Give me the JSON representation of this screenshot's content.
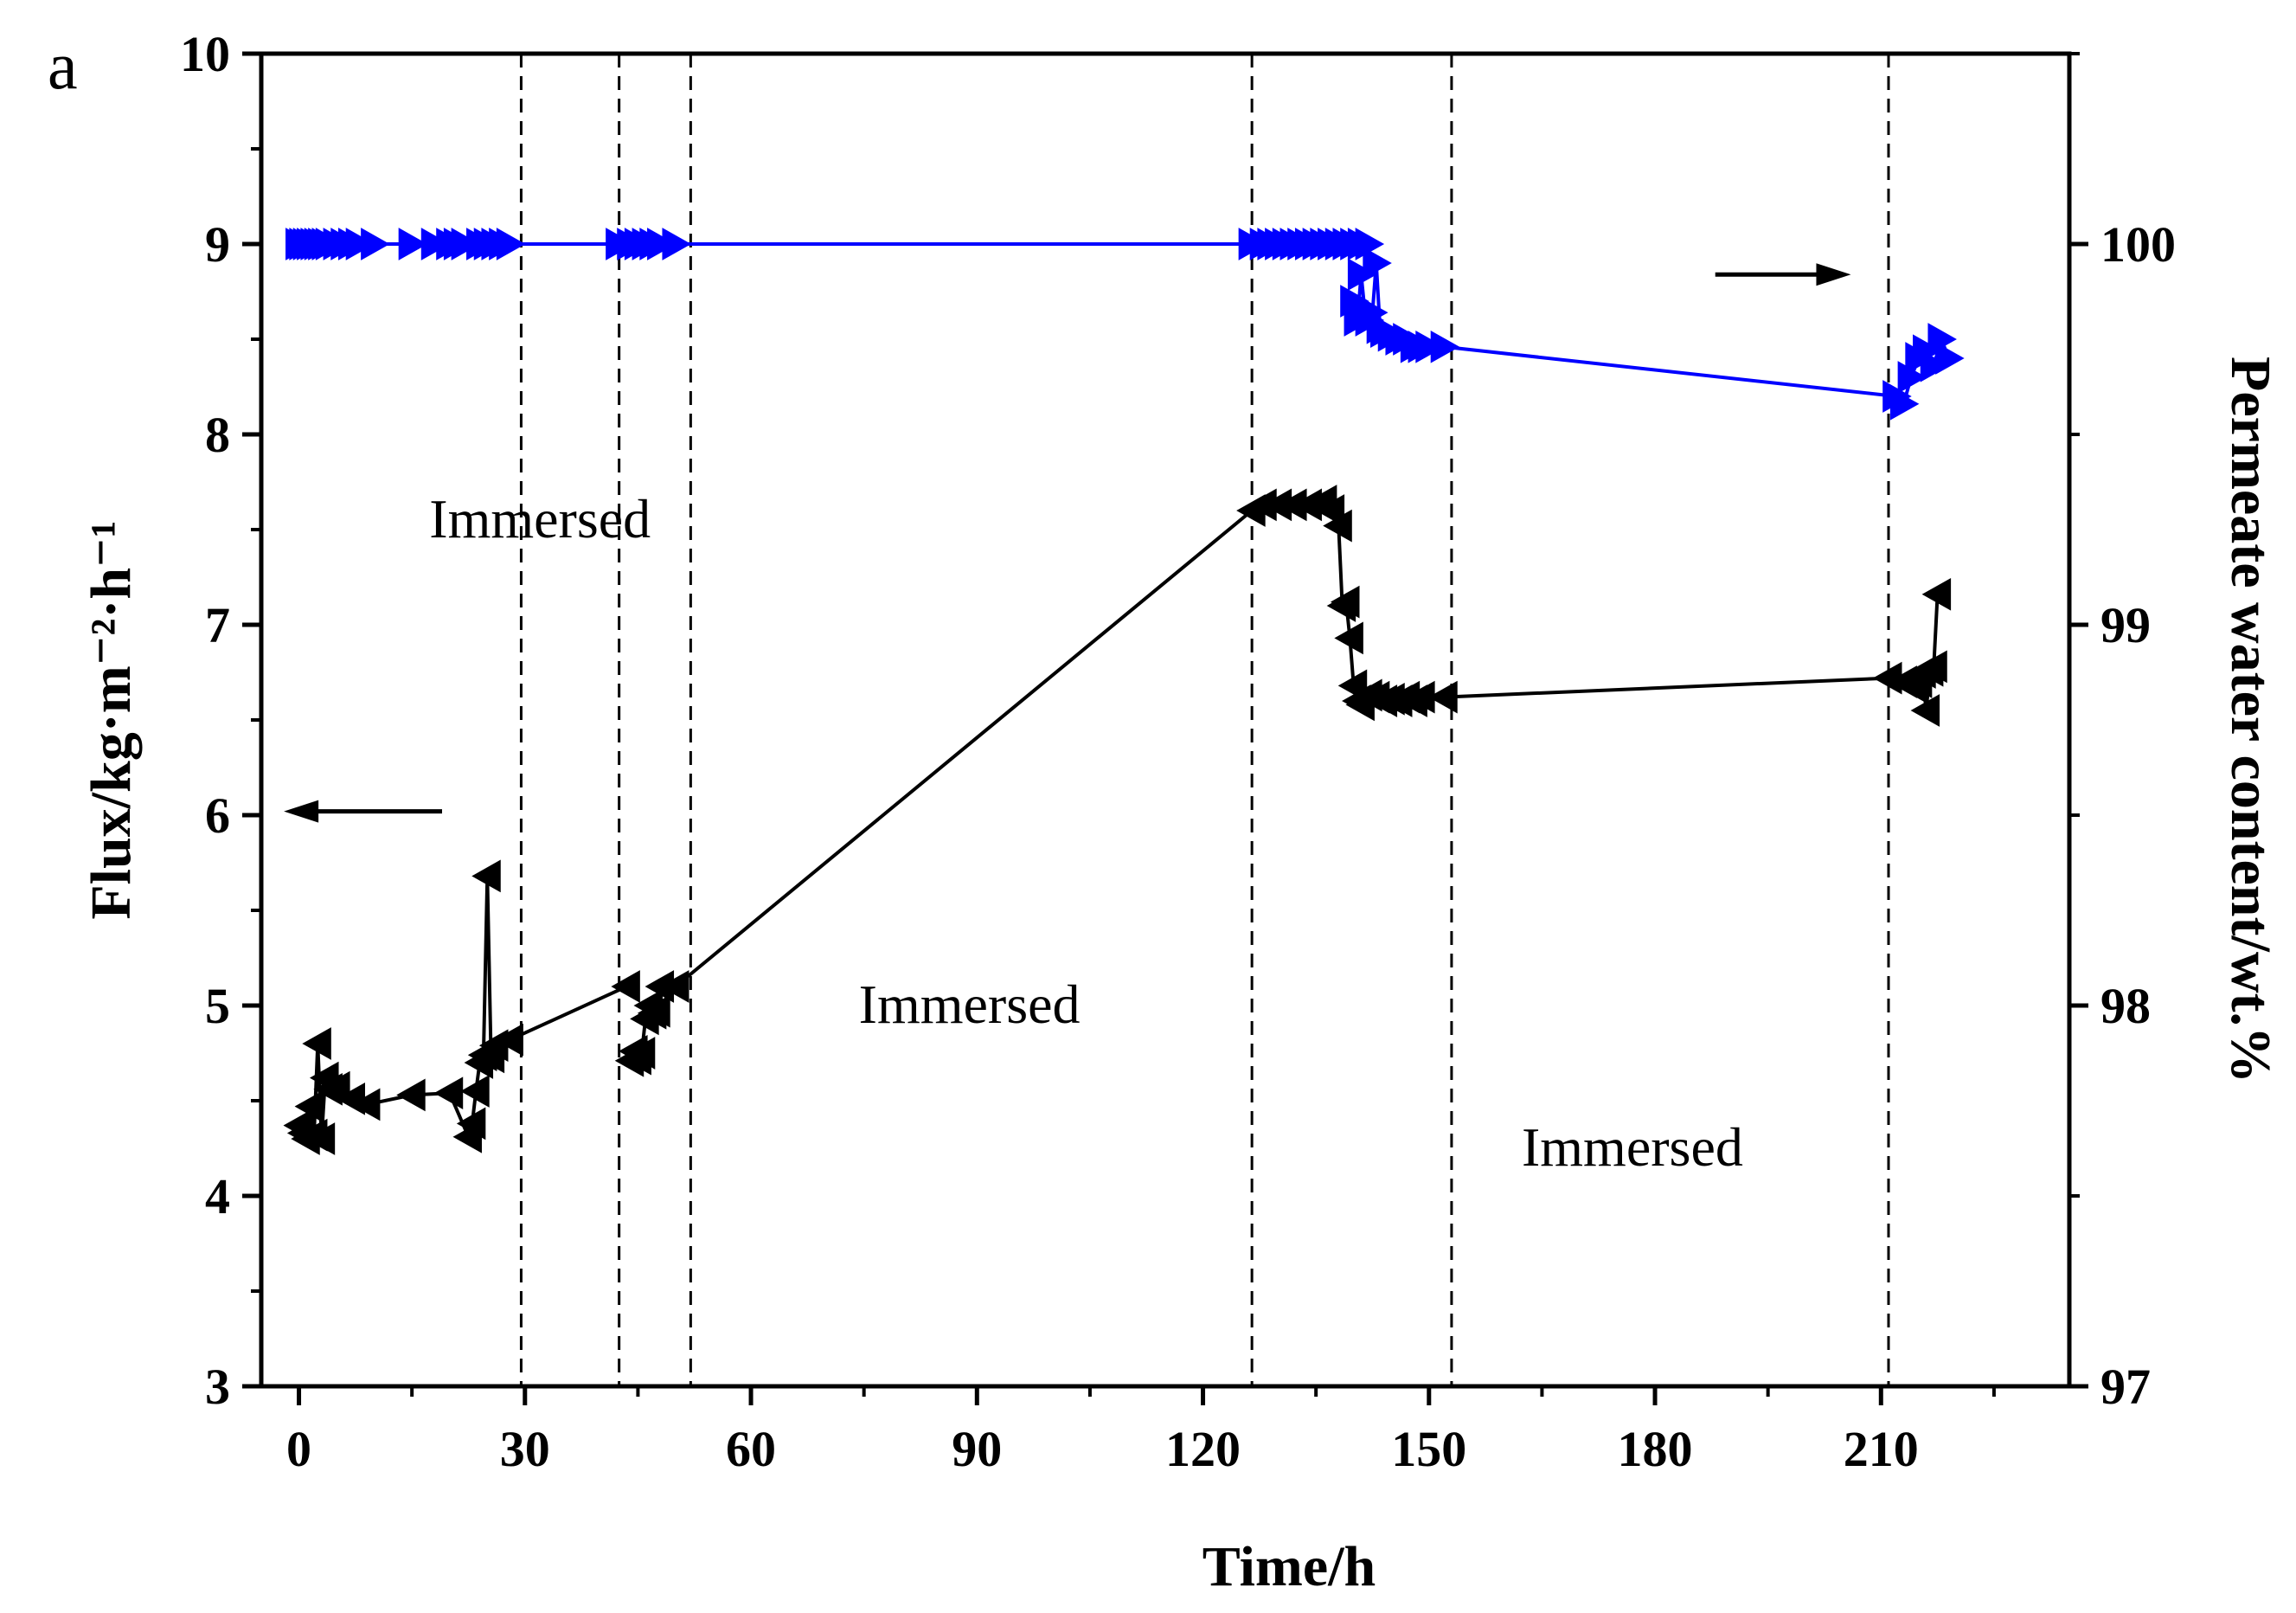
{
  "chart_data": {
    "type": "line",
    "panel_label": "a",
    "xlabel": "Time/h",
    "ylabel_left": "Flux/kg·m⁻²·h⁻¹",
    "ylabel_right": "Permeate water content/wt.%",
    "xlim": [
      -5,
      235
    ],
    "ylim_left": [
      3,
      10
    ],
    "ylim_right": [
      97,
      100.5
    ],
    "xticks": [
      0,
      30,
      60,
      90,
      120,
      150,
      180,
      210
    ],
    "yticks_left": [
      3,
      4,
      5,
      6,
      7,
      8,
      9,
      10
    ],
    "yticks_right": [
      97,
      98,
      99,
      100
    ],
    "vertical_dashed_lines": [
      29.5,
      42.5,
      52,
      126.5,
      153,
      211
    ],
    "annotations": [
      {
        "text": "Immersed",
        "x": 32,
        "y": 7.55
      },
      {
        "text": "Immersed",
        "x": 89,
        "y": 5.0
      },
      {
        "text": "Immersed",
        "x": 177,
        "y": 4.25
      }
    ],
    "arrows": [
      {
        "direction": "left",
        "axis": "left",
        "x_from": 19,
        "x_to": -2,
        "y": 6.02
      },
      {
        "direction": "right",
        "axis": "right",
        "x_from": 188,
        "x_to": 206,
        "y": 99.92
      }
    ],
    "series": [
      {
        "name": "Flux",
        "axis": "left",
        "color": "#000000",
        "marker": "triangle-left",
        "segments": [
          {
            "x": [
              0,
              0.5,
              1,
              1.5,
              2,
              2.5,
              3,
              3.5,
              4,
              5,
              7,
              9,
              15,
              20,
              22.5,
              23,
              23.5,
              24,
              24.5,
              25,
              25.5,
              26
            ],
            "y": [
              4.37,
              4.33,
              4.3,
              4.47,
              4.32,
              4.8,
              4.3,
              4.62,
              4.56,
              4.57,
              4.51,
              4.48,
              4.53,
              4.54,
              4.31,
              4.38,
              4.55,
              4.7,
              4.74,
              5.68,
              4.73,
              4.79
            ]
          },
          {
            "x": [
              28,
              43.5
            ],
            "y": [
              4.82,
              5.1
            ]
          },
          {
            "x": [
              44,
              44.5,
              45,
              45.5,
              46,
              46.5,
              47,
              47.5,
              48
            ],
            "y": [
              4.71,
              4.76,
              4.72,
              4.75,
              4.93,
              5.0,
              4.96,
              4.97,
              5.1
            ]
          },
          {
            "x": [
              50,
              126.5
            ],
            "y": [
              5.1,
              7.6
            ]
          },
          {
            "x": [
              128,
              130,
              132,
              134,
              136,
              137,
              138,
              138.5,
              139,
              139.5,
              140,
              140.5,
              141,
              142,
              143,
              144,
              145,
              146,
              147,
              148,
              149
            ],
            "y": [
              7.63,
              7.63,
              7.63,
              7.63,
              7.65,
              7.6,
              7.52,
              7.1,
              7.12,
              6.93,
              6.68,
              6.6,
              6.58,
              6.63,
              6.62,
              6.6,
              6.61,
              6.6,
              6.62,
              6.6,
              6.62
            ]
          },
          {
            "x": [
              152,
              211
            ],
            "y": [
              6.62,
              6.72
            ]
          },
          {
            "x": [
              213,
              214,
              215,
              215.5,
              216,
              216.5,
              217,
              217.5
            ],
            "y": [
              6.7,
              6.68,
              6.7,
              6.75,
              6.55,
              6.76,
              6.78,
              7.16
            ]
          }
        ]
      },
      {
        "name": "Permeate water content",
        "axis": "right",
        "color": "#0000FF",
        "marker": "triangle-right",
        "segments": [
          {
            "x": [
              0,
              0.5,
              1,
              1.5,
              2,
              2.5,
              3,
              3.5,
              4,
              5,
              6,
              7,
              8,
              10,
              15,
              18,
              20,
              21,
              22,
              24,
              25,
              26,
              27
            ],
            "y": [
              100,
              100,
              100,
              100,
              100,
              100,
              100,
              100,
              100,
              100,
              100,
              100,
              100,
              100,
              100,
              100,
              100,
              100,
              100,
              100,
              100,
              100,
              100
            ]
          },
          {
            "x": [
              28,
              42.5
            ],
            "y": [
              100,
              100
            ]
          },
          {
            "x": [
              44,
              45,
              46,
              47,
              48
            ],
            "y": [
              100,
              100,
              100,
              100,
              100
            ]
          },
          {
            "x": [
              50,
              126.5
            ],
            "y": [
              100,
              100
            ]
          },
          {
            "x": [
              128,
              129,
              130,
              131,
              132,
              133,
              134,
              135,
              136,
              137,
              138,
              139,
              140,
              141,
              142
            ],
            "y": [
              100,
              100,
              100,
              100,
              100,
              100,
              100,
              100,
              100,
              100,
              100,
              100,
              100,
              100,
              100
            ]
          },
          {
            "x": [
              140,
              140.5,
              141,
              141.5,
              142,
              142.5,
              143,
              143.5,
              144,
              145,
              146,
              147,
              148,
              149,
              150
            ],
            "y": [
              99.85,
              99.8,
              99.92,
              99.82,
              99.8,
              99.82,
              99.95,
              99.78,
              99.77,
              99.76,
              99.75,
              99.75,
              99.73,
              99.73,
              99.73
            ]
          },
          {
            "x": [
              152,
              212
            ],
            "y": [
              99.73,
              99.6
            ]
          },
          {
            "x": [
              213,
              214,
              215,
              216,
              217,
              218,
              219
            ],
            "y": [
              99.58,
              99.65,
              99.7,
              99.72,
              99.68,
              99.75,
              99.7
            ]
          }
        ]
      }
    ]
  }
}
